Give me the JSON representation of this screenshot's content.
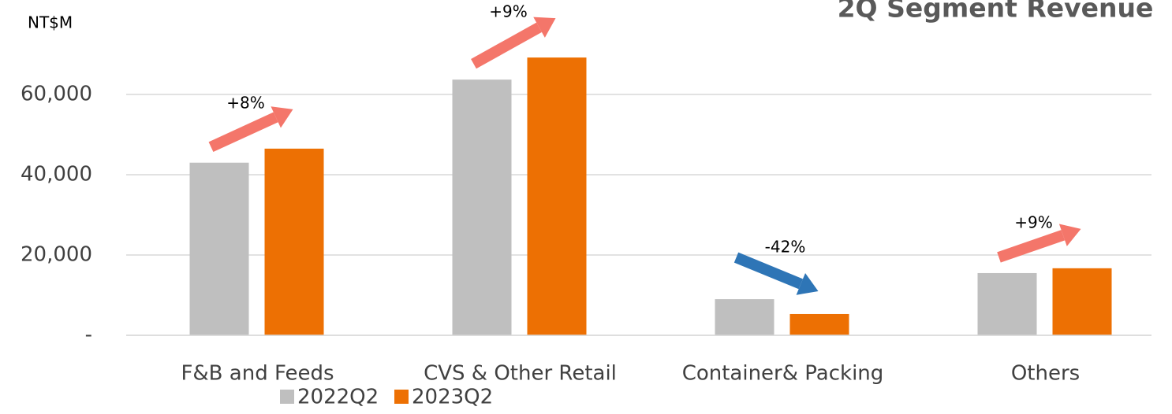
{
  "chart_data": {
    "type": "bar",
    "title": "2Q Segment Revenue",
    "y_label": "NT$M",
    "categories": [
      "F&B and Feeds",
      "CVS & Other Retail",
      "Container& Packing",
      "Others"
    ],
    "series": [
      {
        "name": "2022Q2",
        "color": "#bfbfbf",
        "values": [
          43000,
          63700,
          9000,
          15500
        ]
      },
      {
        "name": "2023Q2",
        "color": "#ed7003",
        "values": [
          46500,
          69200,
          5300,
          16700
        ]
      }
    ],
    "ylim": [
      0,
      80000
    ],
    "yticks": [
      {
        "value": 0,
        "label": "-"
      },
      {
        "value": 20000,
        "label": "20,000"
      },
      {
        "value": 40000,
        "label": "40,000"
      },
      {
        "value": 60000,
        "label": "60,000"
      }
    ],
    "grid": true,
    "legend": "bottom",
    "annotations": [
      {
        "text": "+8%",
        "color": "#f4766a"
      },
      {
        "text": "+9%",
        "color": "#f4766a"
      },
      {
        "text": "-42%",
        "color": "#2e75b6"
      },
      {
        "text": "+9%",
        "color": "#f4766a"
      }
    ]
  }
}
